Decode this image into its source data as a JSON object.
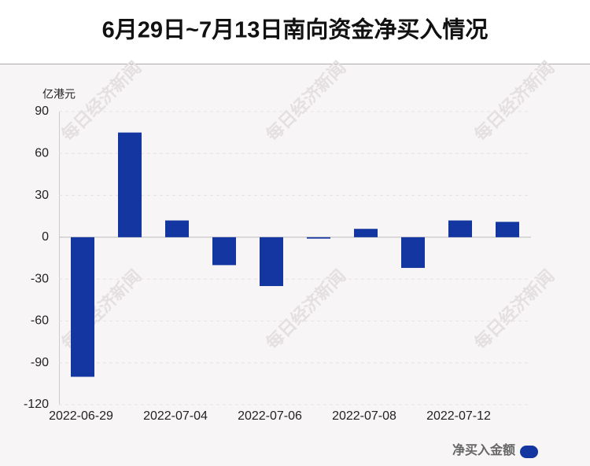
{
  "chart_data": {
    "type": "bar",
    "title": "6月29日~7月13日南向资金净买入情况",
    "y_label": "亿港元",
    "watermark": "每日经济新闻",
    "categories": [
      "2022-06-29",
      null,
      "2022-07-04",
      null,
      "2022-07-06",
      null,
      "2022-07-08",
      null,
      "2022-07-12",
      null
    ],
    "series": [
      {
        "name": "净买入金额",
        "color": "#1436a0",
        "values": [
          -100,
          75,
          12,
          -20,
          -35,
          -1,
          6,
          -22,
          12,
          11
        ]
      }
    ],
    "ylim": [
      -120,
      90
    ],
    "yticks": [
      90,
      60,
      30,
      0,
      -30,
      -60,
      -90,
      -120
    ],
    "grid": true,
    "legend": "bottom-right"
  }
}
